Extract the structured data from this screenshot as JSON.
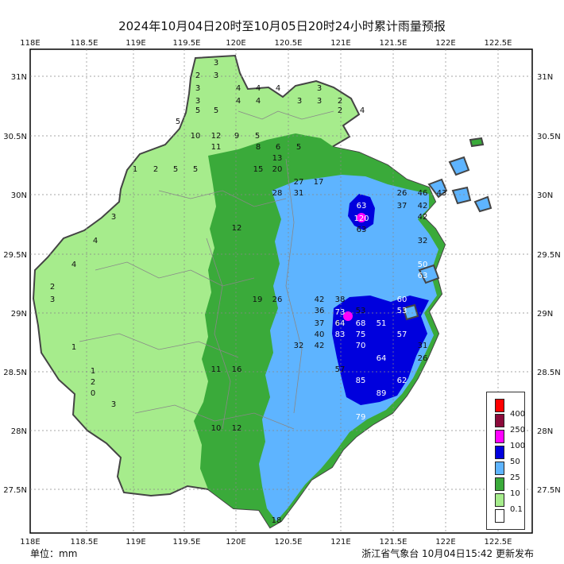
{
  "title": "2024年10月04日20时至10月05日20时24小时累计雨量预报",
  "unit_label": "单位：mm",
  "issuer_label": "浙江省气象台 10月04日15:42 更新发布",
  "axes": {
    "lon_labels": [
      "118E",
      "118.5E",
      "119E",
      "119.5E",
      "120E",
      "120.5E",
      "121E",
      "121.5E",
      "122E",
      "122.5E"
    ],
    "lat_labels": [
      "31N",
      "30.5N",
      "30N",
      "29.5N",
      "29N",
      "28.5N",
      "28N",
      "27.5N"
    ]
  },
  "legend": [
    {
      "label": "400",
      "color": "#ff0000"
    },
    {
      "label": "250",
      "color": "#8b0a3a"
    },
    {
      "label": "100",
      "color": "#ff00ff"
    },
    {
      "label": "50",
      "color": "#0000dd"
    },
    {
      "label": "25",
      "color": "#5eb4ff"
    },
    {
      "label": "10",
      "color": "#3aaa3a"
    },
    {
      "label": "0.1",
      "color": "#a6ec8c"
    },
    {
      "label": "",
      "color": "#ffffff"
    }
  ],
  "station_values": {
    "north": [
      "3",
      "2",
      "3",
      "3",
      "4",
      "3",
      "4",
      "4",
      "5",
      "4",
      "5",
      "4",
      "5",
      "3",
      "3",
      "3",
      "2",
      "2",
      "4"
    ],
    "west": [
      "1",
      "2",
      "5",
      "5",
      "3",
      "4",
      "4",
      "2",
      "3",
      "1",
      "1",
      "2",
      "3",
      "0"
    ],
    "central": [
      "10",
      "11",
      "8",
      "12",
      "9",
      "5",
      "6",
      "5",
      "13",
      "15",
      "20",
      "17",
      "12",
      "19",
      "26",
      "16",
      "11",
      "12",
      "10"
    ],
    "east": [
      "27",
      "28",
      "31",
      "38",
      "42",
      "44",
      "37",
      "32",
      "36",
      "40",
      "42",
      "53",
      "57",
      "64",
      "73",
      "83",
      "75",
      "68",
      "70",
      "85",
      "89",
      "79"
    ],
    "coast": [
      "120",
      "63",
      "63",
      "26",
      "42",
      "50",
      "63",
      "60",
      "53",
      "57",
      "64",
      "62",
      "51",
      "46",
      "43",
      "26",
      "37",
      "42",
      "31",
      "32",
      "18"
    ]
  }
}
